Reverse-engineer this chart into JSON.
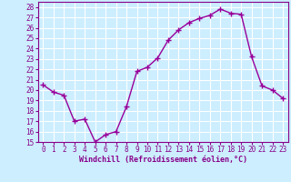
{
  "x": [
    0,
    1,
    2,
    3,
    4,
    5,
    6,
    7,
    8,
    9,
    10,
    11,
    12,
    13,
    14,
    15,
    16,
    17,
    18,
    19,
    20,
    21,
    22,
    23
  ],
  "y": [
    20.5,
    19.8,
    19.5,
    17.0,
    17.2,
    15.0,
    15.7,
    16.0,
    18.4,
    21.8,
    22.2,
    23.1,
    24.8,
    25.8,
    26.5,
    26.9,
    27.2,
    27.8,
    27.4,
    27.3,
    23.2,
    20.4,
    20.0,
    19.2
  ],
  "line_color": "#990099",
  "marker": "+",
  "marker_size": 4,
  "xlim": [
    -0.5,
    23.5
  ],
  "ylim": [
    15,
    28.5
  ],
  "yticks": [
    15,
    16,
    17,
    18,
    19,
    20,
    21,
    22,
    23,
    24,
    25,
    26,
    27,
    28
  ],
  "xticks": [
    0,
    1,
    2,
    3,
    4,
    5,
    6,
    7,
    8,
    9,
    10,
    11,
    12,
    13,
    14,
    15,
    16,
    17,
    18,
    19,
    20,
    21,
    22,
    23
  ],
  "xlabel": "Windchill (Refroidissement éolien,°C)",
  "bg_color": "#cceeff",
  "grid_color": "#ffffff",
  "tick_label_color": "#880088",
  "axis_label_color": "#880088",
  "tick_fontsize": 5.5,
  "xlabel_fontsize": 6.0
}
